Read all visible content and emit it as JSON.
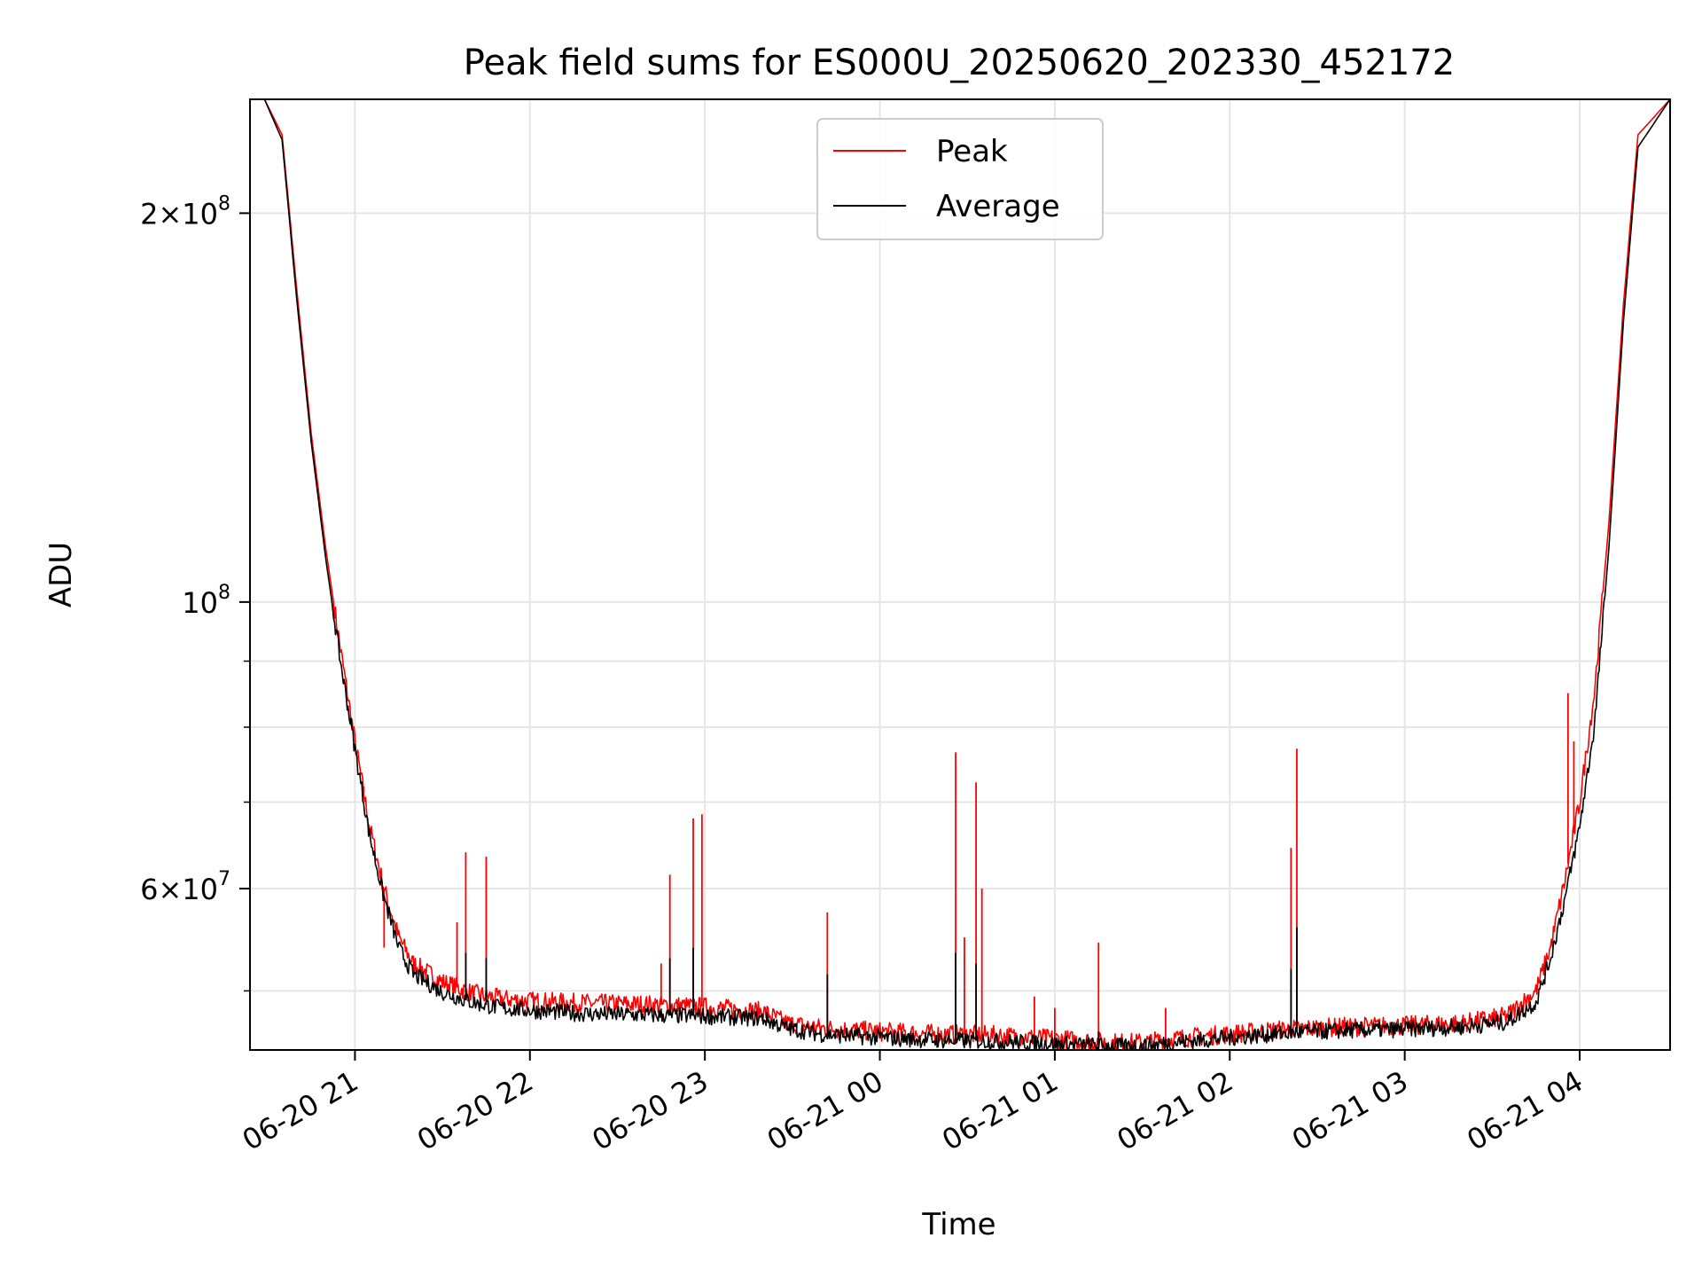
{
  "chart_data": {
    "type": "line",
    "title": "Peak field sums for ES000U_20250620_202330_452172",
    "xlabel": "Time",
    "ylabel": "ADU",
    "x_axis_type": "datetime",
    "xlim": [
      "2025-06-20 20:24",
      "2025-06-21 04:31"
    ],
    "y_scale": "log",
    "ylim": [
      45000000,
      245000000
    ],
    "grid": true,
    "legend_position": "top-center",
    "x_ticks": [
      "2025-06-20 21:00",
      "2025-06-20 22:00",
      "2025-06-20 23:00",
      "2025-06-21 00:00",
      "2025-06-21 01:00",
      "2025-06-21 02:00",
      "2025-06-21 03:00",
      "2025-06-21 04:00"
    ],
    "x_tick_labels": [
      "06-20 21",
      "06-20 22",
      "06-20 23",
      "06-21 00",
      "06-21 01",
      "06-21 02",
      "06-21 03",
      "06-21 04"
    ],
    "y_major_ticks": [
      {
        "value": 200000000,
        "label_mantissa": "2",
        "label_base": "10",
        "label_exponent": "8"
      },
      {
        "value": 100000000,
        "label_mantissa": "",
        "label_base": "10",
        "label_exponent": "8"
      },
      {
        "value": 60000000,
        "label_mantissa": "6",
        "label_base": "10",
        "label_exponent": "7"
      }
    ],
    "y_minor_gridlines": [
      50000000,
      70000000,
      80000000,
      90000000
    ],
    "series": [
      {
        "name": "Peak",
        "color": "#ff0000",
        "x": [
          "2025-06-20 20:24",
          "2025-06-20 20:29",
          "2025-06-20 20:35",
          "2025-06-20 20:40",
          "2025-06-20 20:45",
          "2025-06-20 20:50",
          "2025-06-20 20:55",
          "2025-06-20 21:00",
          "2025-06-20 21:05",
          "2025-06-20 21:10",
          "2025-06-20 21:15",
          "2025-06-20 21:20",
          "2025-06-20 21:30",
          "2025-06-20 21:40",
          "2025-06-20 21:50",
          "2025-06-20 22:00",
          "2025-06-20 22:20",
          "2025-06-20 22:40",
          "2025-06-20 23:00",
          "2025-06-20 23:20",
          "2025-06-20 23:28",
          "2025-06-20 23:40",
          "2025-06-21 00:00",
          "2025-06-21 00:20",
          "2025-06-21 00:40",
          "2025-06-21 01:00",
          "2025-06-21 01:20",
          "2025-06-21 01:30",
          "2025-06-21 01:40",
          "2025-06-21 02:00",
          "2025-06-21 02:20",
          "2025-06-21 02:40",
          "2025-06-21 03:00",
          "2025-06-21 03:20",
          "2025-06-21 03:35",
          "2025-06-21 03:45",
          "2025-06-21 03:50",
          "2025-06-21 03:55",
          "2025-06-21 04:00",
          "2025-06-21 04:05",
          "2025-06-21 04:10",
          "2025-06-21 04:15",
          "2025-06-21 04:20",
          "2025-06-21 04:31"
        ],
        "y": [
          245000000,
          245000000,
          230000000,
          175000000,
          135000000,
          110000000,
          92000000,
          78000000,
          67000000,
          60000000,
          55000000,
          52500000,
          50800000,
          49800000,
          49300000,
          49100000,
          48900000,
          48800000,
          48600000,
          48200000,
          47200000,
          46800000,
          46500000,
          46300000,
          46200000,
          45900000,
          45600000,
          45600000,
          45900000,
          46300000,
          46700000,
          46900000,
          47000000,
          47200000,
          47800000,
          50000000,
          54000000,
          61000000,
          70000000,
          85000000,
          115000000,
          170000000,
          230000000,
          245000000
        ],
        "spikes": [
          {
            "x": "2025-06-20 21:03",
            "y": 72000000
          },
          {
            "x": "2025-06-20 21:10",
            "y": 54000000
          },
          {
            "x": "2025-06-20 21:20",
            "y": 51500000
          },
          {
            "x": "2025-06-20 21:35",
            "y": 56500000
          },
          {
            "x": "2025-06-20 21:38",
            "y": 64000000
          },
          {
            "x": "2025-06-20 21:45",
            "y": 63500000
          },
          {
            "x": "2025-06-20 22:45",
            "y": 52500000
          },
          {
            "x": "2025-06-20 22:48",
            "y": 61500000
          },
          {
            "x": "2025-06-20 22:56",
            "y": 68000000
          },
          {
            "x": "2025-06-20 22:59",
            "y": 68500000
          },
          {
            "x": "2025-06-20 23:42",
            "y": 57500000
          },
          {
            "x": "2025-06-21 00:26",
            "y": 76500000
          },
          {
            "x": "2025-06-21 00:29",
            "y": 55000000
          },
          {
            "x": "2025-06-21 00:33",
            "y": 72500000
          },
          {
            "x": "2025-06-21 00:35",
            "y": 60000000
          },
          {
            "x": "2025-06-21 00:53",
            "y": 49500000
          },
          {
            "x": "2025-06-21 01:00",
            "y": 48500000
          },
          {
            "x": "2025-06-21 01:15",
            "y": 54500000
          },
          {
            "x": "2025-06-21 01:38",
            "y": 48500000
          },
          {
            "x": "2025-06-21 02:21",
            "y": 64500000
          },
          {
            "x": "2025-06-21 02:23",
            "y": 77000000
          },
          {
            "x": "2025-06-21 03:56",
            "y": 85000000
          },
          {
            "x": "2025-06-21 03:58",
            "y": 78000000
          }
        ]
      },
      {
        "name": "Average",
        "color": "#000000",
        "x": [
          "2025-06-20 20:24",
          "2025-06-20 20:29",
          "2025-06-20 20:35",
          "2025-06-20 20:40",
          "2025-06-20 20:45",
          "2025-06-20 20:50",
          "2025-06-20 20:55",
          "2025-06-20 21:00",
          "2025-06-20 21:05",
          "2025-06-20 21:10",
          "2025-06-20 21:15",
          "2025-06-20 21:20",
          "2025-06-20 21:30",
          "2025-06-20 21:40",
          "2025-06-20 21:50",
          "2025-06-20 22:00",
          "2025-06-20 22:20",
          "2025-06-20 22:40",
          "2025-06-20 23:00",
          "2025-06-20 23:20",
          "2025-06-20 23:28",
          "2025-06-20 23:40",
          "2025-06-21 00:00",
          "2025-06-21 00:20",
          "2025-06-21 00:40",
          "2025-06-21 01:00",
          "2025-06-21 01:20",
          "2025-06-21 01:30",
          "2025-06-21 01:40",
          "2025-06-21 02:00",
          "2025-06-21 02:20",
          "2025-06-21 02:40",
          "2025-06-21 03:00",
          "2025-06-21 03:20",
          "2025-06-21 03:35",
          "2025-06-21 03:45",
          "2025-06-21 03:50",
          "2025-06-21 03:55",
          "2025-06-21 04:00",
          "2025-06-21 04:05",
          "2025-06-21 04:10",
          "2025-06-21 04:15",
          "2025-06-21 04:20",
          "2025-06-21 04:31"
        ],
        "y": [
          245000000,
          245000000,
          228000000,
          172000000,
          133000000,
          108000000,
          90000000,
          77000000,
          66000000,
          59000000,
          54000000,
          51500000,
          49900000,
          49000000,
          48500000,
          48300000,
          48000000,
          47900000,
          47800000,
          47600000,
          46800000,
          46300000,
          46000000,
          45800000,
          45700000,
          45500000,
          45300000,
          45300000,
          45600000,
          46000000,
          46400000,
          46600000,
          46700000,
          46900000,
          47300000,
          49000000,
          53000000,
          59000000,
          67000000,
          80000000,
          110000000,
          165000000,
          225000000,
          245000000
        ],
        "spikes": [
          {
            "x": "2025-06-20 21:38",
            "y": 53500000
          },
          {
            "x": "2025-06-20 21:45",
            "y": 53000000
          },
          {
            "x": "2025-06-20 22:48",
            "y": 53000000
          },
          {
            "x": "2025-06-20 22:56",
            "y": 54000000
          },
          {
            "x": "2025-06-20 23:42",
            "y": 51500000
          },
          {
            "x": "2025-06-21 00:26",
            "y": 53500000
          },
          {
            "x": "2025-06-21 00:33",
            "y": 52500000
          },
          {
            "x": "2025-06-21 01:15",
            "y": 46500000
          },
          {
            "x": "2025-06-21 02:21",
            "y": 52000000
          },
          {
            "x": "2025-06-21 02:23",
            "y": 56000000
          }
        ]
      }
    ]
  }
}
